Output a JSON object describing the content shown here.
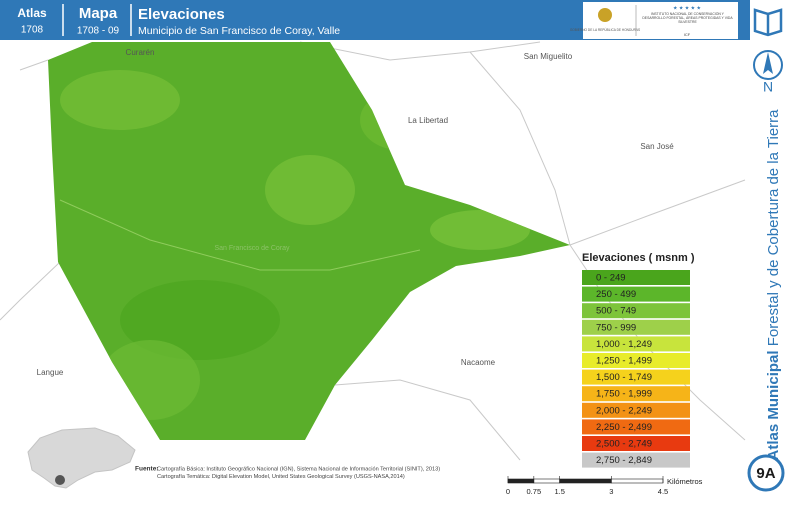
{
  "header": {
    "atlas_label": "Atlas",
    "atlas_code": "1708",
    "map_label": "Mapa",
    "map_code": "1708 - 09",
    "title": "Elevaciones",
    "subtitle": "Municipio de San Francisco de Coray, Valle",
    "logo_left": "GOBIERNO DE LA REPÚBLICA DE HONDURAS",
    "logo_right": "INSTITUTO NACIONAL DE CONSERVACIÓN Y DESARROLLO FORESTAL, ÁREAS PROTEGIDAS Y VIDA SILVESTRE",
    "logo_acronym": "ICF"
  },
  "sidebar": {
    "north": "N",
    "series_bold": "Atlas Municipal",
    "series_rest": "Forestal y de Cobertura de la Tierra",
    "page": "9A"
  },
  "places": [
    "Curarén",
    "San Miguelito",
    "La Libertad",
    "San José",
    "Langue",
    "Nacaome"
  ],
  "municipality_label": "San Francisco de Coray",
  "legend": {
    "title": "Elevaciones ( msnm )",
    "items": [
      {
        "label": "0 - 249",
        "color": "#4aa51c"
      },
      {
        "label": "250 - 499",
        "color": "#5cb62a"
      },
      {
        "label": "500 - 749",
        "color": "#7dc43a"
      },
      {
        "label": "750 - 999",
        "color": "#9ed04a"
      },
      {
        "label": "1,000 - 1,249",
        "color": "#c8e43c"
      },
      {
        "label": "1,250 - 1,499",
        "color": "#e8ec2a"
      },
      {
        "label": "1,500 - 1,749",
        "color": "#f5d21c"
      },
      {
        "label": "1,750 - 1,999",
        "color": "#f6b418"
      },
      {
        "label": "2,000 - 2,249",
        "color": "#f39215"
      },
      {
        "label": "2,250 - 2,499",
        "color": "#f06a12"
      },
      {
        "label": "2,500 - 2,749",
        "color": "#e83a10"
      },
      {
        "label": "2,750 - 2,849",
        "color": "#c8c8c8"
      }
    ]
  },
  "scale_bar": {
    "ticks": [
      0,
      0.75,
      1.5,
      3,
      4.5
    ],
    "unit": "Kilómetros"
  },
  "source": {
    "label": "Fuente:",
    "lines": [
      "Cartografía Básica: Instituto Geográfico Nacional (IGN), Sistema Nacional de Información Territorial (SINIT), 2013)",
      "Cartografía Temática: Digital Elevation Model, United States Geological Survey (USGS-NASA,2014)"
    ]
  }
}
